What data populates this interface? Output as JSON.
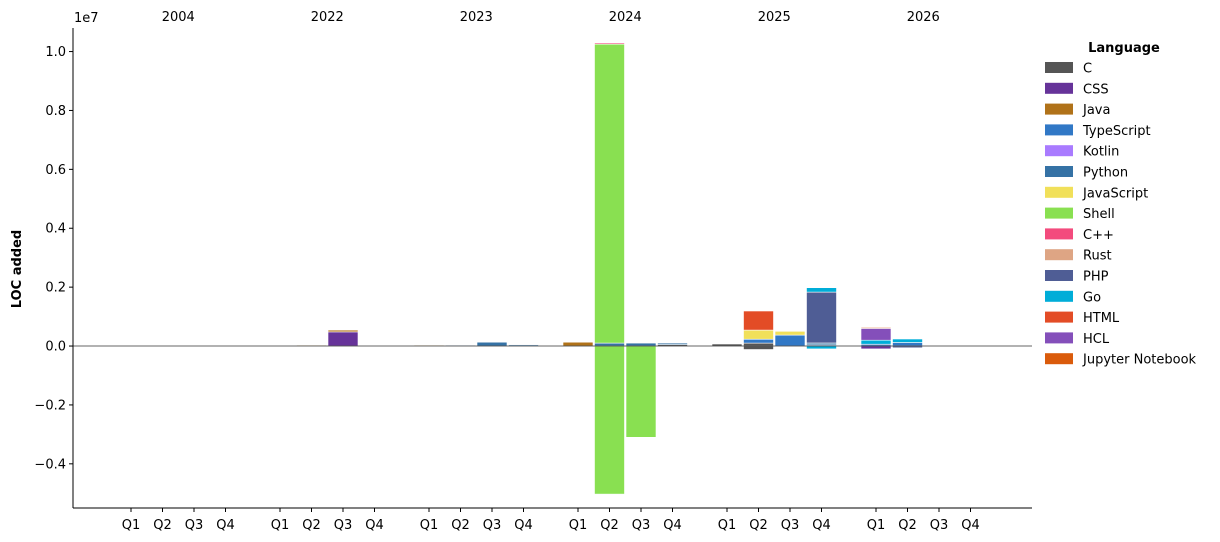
{
  "chart_data": {
    "type": "bar",
    "stacked": true,
    "ylabel": "LOC added",
    "y_multiplier_label": "1e7",
    "ylim": [
      -5500000,
      10800000
    ],
    "yticks": [
      {
        "value": -4000000,
        "label": "−0.4"
      },
      {
        "value": -2000000,
        "label": "−0.2"
      },
      {
        "value": 0,
        "label": "0.0"
      },
      {
        "value": 2000000,
        "label": "0.2"
      },
      {
        "value": 4000000,
        "label": "0.4"
      },
      {
        "value": 6000000,
        "label": "0.6"
      },
      {
        "value": 8000000,
        "label": "0.8"
      },
      {
        "value": 10000000,
        "label": "1.0"
      }
    ],
    "years": [
      "2004",
      "2022",
      "2023",
      "2024",
      "2025",
      "2026"
    ],
    "quarters": [
      "Q1",
      "Q2",
      "Q3",
      "Q4"
    ],
    "legend": {
      "title": "Language",
      "placement": "right",
      "entries": [
        {
          "name": "C",
          "color": "#555555"
        },
        {
          "name": "CSS",
          "color": "#663399"
        },
        {
          "name": "Java",
          "color": "#b07219"
        },
        {
          "name": "TypeScript",
          "color": "#3178c6"
        },
        {
          "name": "Kotlin",
          "color": "#a97bff"
        },
        {
          "name": "Python",
          "color": "#3572a5"
        },
        {
          "name": "JavaScript",
          "color": "#f1e05a"
        },
        {
          "name": "Shell",
          "color": "#89e051"
        },
        {
          "name": "C++",
          "color": "#f34b7d"
        },
        {
          "name": "Rust",
          "color": "#dea584"
        },
        {
          "name": "PHP",
          "color": "#4f5d95"
        },
        {
          "name": "Go",
          "color": "#00add8"
        },
        {
          "name": "HTML",
          "color": "#e34c26"
        },
        {
          "name": "HCL",
          "color": "#844fba"
        },
        {
          "name": "Jupyter Notebook",
          "color": "#da5b0b"
        }
      ]
    },
    "bars": [
      {
        "year": "2022",
        "quarter": "Q2",
        "segments": [
          {
            "lang": "Java",
            "value": 30000
          }
        ]
      },
      {
        "year": "2022",
        "quarter": "Q3",
        "segments": [
          {
            "lang": "CSS",
            "value": 480000
          },
          {
            "lang": "Java",
            "value": 60000
          }
        ]
      },
      {
        "year": "2023",
        "quarter": "Q1",
        "segments": [
          {
            "lang": "Java",
            "value": 30000
          }
        ]
      },
      {
        "year": "2023",
        "quarter": "Q2",
        "segments": [
          {
            "lang": "Python",
            "value": 30000
          }
        ]
      },
      {
        "year": "2023",
        "quarter": "Q3",
        "segments": [
          {
            "lang": "Python",
            "value": 130000
          }
        ]
      },
      {
        "year": "2023",
        "quarter": "Q4",
        "segments": [
          {
            "lang": "Python",
            "value": 40000
          }
        ]
      },
      {
        "year": "2024",
        "quarter": "Q1",
        "segments": [
          {
            "lang": "Java",
            "value": 130000
          }
        ]
      },
      {
        "year": "2024",
        "quarter": "Q2",
        "segments": [
          {
            "lang": "Python",
            "value": 100000
          },
          {
            "lang": "Shell",
            "value": 10150000
          },
          {
            "lang": "C++",
            "value": 40000
          },
          {
            "lang": "Shell",
            "value": -5030000
          }
        ]
      },
      {
        "year": "2024",
        "quarter": "Q3",
        "segments": [
          {
            "lang": "Python",
            "value": 100000
          },
          {
            "lang": "Shell",
            "value": -3100000
          }
        ]
      },
      {
        "year": "2024",
        "quarter": "Q4",
        "segments": [
          {
            "lang": "C",
            "value": 50000
          },
          {
            "lang": "Python",
            "value": 50000
          }
        ]
      },
      {
        "year": "2025",
        "quarter": "Q1",
        "segments": [
          {
            "lang": "C",
            "value": 70000
          }
        ]
      },
      {
        "year": "2025",
        "quarter": "Q2",
        "segments": [
          {
            "lang": "C",
            "value": 100000
          },
          {
            "lang": "TypeScript",
            "value": 130000
          },
          {
            "lang": "JavaScript",
            "value": 310000
          },
          {
            "lang": "HTML",
            "value": 650000
          },
          {
            "lang": "C",
            "value": -120000
          }
        ]
      },
      {
        "year": "2025",
        "quarter": "Q3",
        "segments": [
          {
            "lang": "TypeScript",
            "value": 370000
          },
          {
            "lang": "JavaScript",
            "value": 130000
          }
        ]
      },
      {
        "year": "2025",
        "quarter": "Q4",
        "segments": [
          {
            "lang": "TypeScript",
            "value": 40000
          },
          {
            "lang": "Python",
            "value": 60000
          },
          {
            "lang": "PHP",
            "value": 1730000
          },
          {
            "lang": "Go",
            "value": 150000
          },
          {
            "lang": "Go",
            "value": -100000
          }
        ]
      },
      {
        "year": "2026",
        "quarter": "Q1",
        "segments": [
          {
            "lang": "TypeScript",
            "value": 60000
          },
          {
            "lang": "Go",
            "value": 140000
          },
          {
            "lang": "HCL",
            "value": 400000
          },
          {
            "lang": "Jupyter Notebook",
            "value": 30000
          },
          {
            "lang": "CSS",
            "value": -100000
          }
        ]
      },
      {
        "year": "2026",
        "quarter": "Q2",
        "segments": [
          {
            "lang": "TypeScript",
            "value": 120000
          },
          {
            "lang": "Go",
            "value": 120000
          },
          {
            "lang": "PHP",
            "value": -60000
          }
        ]
      }
    ]
  }
}
